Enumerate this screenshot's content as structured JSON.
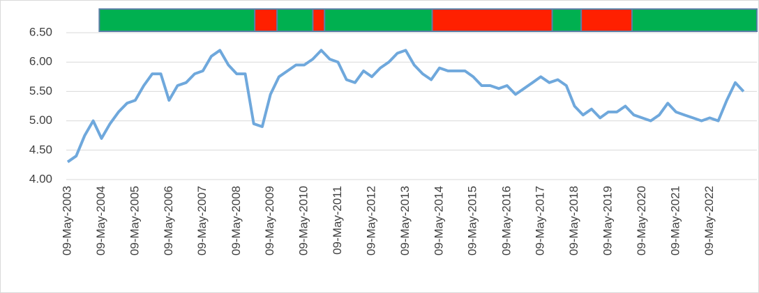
{
  "chart_data": {
    "type": "line",
    "x": [
      "2003-05-09",
      "2003-08-09",
      "2003-11-09",
      "2004-02-09",
      "2004-05-09",
      "2004-08-09",
      "2004-11-09",
      "2005-02-09",
      "2005-05-09",
      "2005-08-09",
      "2005-11-09",
      "2006-02-09",
      "2006-05-09",
      "2006-08-09",
      "2006-11-09",
      "2007-02-09",
      "2007-05-09",
      "2007-08-09",
      "2007-11-09",
      "2008-02-09",
      "2008-05-09",
      "2008-08-09",
      "2008-11-09",
      "2009-02-09",
      "2009-05-09",
      "2009-08-09",
      "2009-11-09",
      "2010-02-09",
      "2010-05-09",
      "2010-08-09",
      "2010-11-09",
      "2011-02-09",
      "2011-05-09",
      "2011-08-09",
      "2011-11-09",
      "2012-02-09",
      "2012-05-09",
      "2012-08-09",
      "2012-11-09",
      "2013-02-09",
      "2013-05-09",
      "2013-08-09",
      "2013-11-09",
      "2014-02-09",
      "2014-05-09",
      "2014-08-09",
      "2014-11-09",
      "2015-02-09",
      "2015-05-09",
      "2015-08-09",
      "2015-11-09",
      "2016-02-09",
      "2016-05-09",
      "2016-08-09",
      "2016-11-09",
      "2017-02-09",
      "2017-05-09",
      "2017-08-09",
      "2017-11-09",
      "2018-02-09",
      "2018-05-09",
      "2018-08-09",
      "2018-11-09",
      "2019-02-09",
      "2019-05-09",
      "2019-08-09",
      "2019-11-09",
      "2020-02-09",
      "2020-05-09",
      "2020-08-09",
      "2020-11-09",
      "2021-02-09",
      "2021-05-09",
      "2021-08-09",
      "2021-11-09",
      "2022-02-09",
      "2022-05-09",
      "2022-08-09",
      "2022-11-09",
      "2023-02-09",
      "2023-05-09"
    ],
    "series": [
      {
        "color": "#6fa8dc",
        "values": [
          4.3,
          4.4,
          4.75,
          5.0,
          4.7,
          4.95,
          5.15,
          5.3,
          5.35,
          5.6,
          5.8,
          5.8,
          5.35,
          5.6,
          5.65,
          5.8,
          5.85,
          6.1,
          6.2,
          5.95,
          5.8,
          5.8,
          4.95,
          4.9,
          5.45,
          5.75,
          5.85,
          5.95,
          5.95,
          6.05,
          6.2,
          6.05,
          6.0,
          5.7,
          5.65,
          5.85,
          5.75,
          5.9,
          6.0,
          6.15,
          6.2,
          5.95,
          5.8,
          5.7,
          5.9,
          5.85,
          5.85,
          5.85,
          5.75,
          5.6,
          5.6,
          5.55,
          5.6,
          5.45,
          5.55,
          5.65,
          5.75,
          5.65,
          5.7,
          5.6,
          5.25,
          5.1,
          5.2,
          5.05,
          5.15,
          5.15,
          5.25,
          5.1,
          5.05,
          5.0,
          5.1,
          5.3,
          5.15,
          5.1,
          5.05,
          5.0,
          5.05,
          5.0,
          5.35,
          5.65,
          5.5
        ]
      }
    ],
    "bands": [
      {
        "start": "2004-04-15",
        "end": "2008-11-20",
        "color": "#00b050"
      },
      {
        "start": "2008-11-20",
        "end": "2009-07-20",
        "color": "#ff2000"
      },
      {
        "start": "2009-07-20",
        "end": "2010-08-10",
        "color": "#00b050"
      },
      {
        "start": "2010-08-10",
        "end": "2010-12-15",
        "color": "#ff2000"
      },
      {
        "start": "2010-12-15",
        "end": "2014-02-20",
        "color": "#00b050"
      },
      {
        "start": "2014-02-20",
        "end": "2017-09-10",
        "color": "#ff2000"
      },
      {
        "start": "2017-09-10",
        "end": "2018-07-20",
        "color": "#00b050"
      },
      {
        "start": "2018-07-20",
        "end": "2020-01-20",
        "color": "#ff2000"
      },
      {
        "start": "2020-01-20",
        "end": "2023-10-01",
        "color": "#00b050"
      }
    ],
    "xlim": [
      "2003-05-09",
      "2023-10-01"
    ],
    "xticks": [
      {
        "value": "2003-05-09",
        "label": "09-May-2003"
      },
      {
        "value": "2004-05-09",
        "label": "09-May-2004"
      },
      {
        "value": "2005-05-09",
        "label": "09-May-2005"
      },
      {
        "value": "2006-05-09",
        "label": "09-May-2006"
      },
      {
        "value": "2007-05-09",
        "label": "09-May-2007"
      },
      {
        "value": "2008-05-09",
        "label": "09-May-2008"
      },
      {
        "value": "2009-05-09",
        "label": "09-May-2009"
      },
      {
        "value": "2010-05-09",
        "label": "09-May-2010"
      },
      {
        "value": "2011-05-09",
        "label": "09-May-2011"
      },
      {
        "value": "2012-05-09",
        "label": "09-May-2012"
      },
      {
        "value": "2013-05-09",
        "label": "09-May-2013"
      },
      {
        "value": "2014-05-09",
        "label": "09-May-2014"
      },
      {
        "value": "2015-05-09",
        "label": "09-May-2015"
      },
      {
        "value": "2016-05-09",
        "label": "09-May-2016"
      },
      {
        "value": "2017-05-09",
        "label": "09-May-2017"
      },
      {
        "value": "2018-05-09",
        "label": "09-May-2018"
      },
      {
        "value": "2019-05-09",
        "label": "09-May-2019"
      },
      {
        "value": "2020-05-09",
        "label": "09-May-2020"
      },
      {
        "value": "2021-05-09",
        "label": "09-May-2021"
      },
      {
        "value": "2022-05-09",
        "label": "09-May-2022"
      }
    ],
    "ylim": [
      4,
      6.5
    ],
    "yticks": [
      {
        "value": 4,
        "label": "4.00"
      },
      {
        "value": 4.5,
        "label": "4.50"
      },
      {
        "value": 5,
        "label": "5.00"
      },
      {
        "value": 5.5,
        "label": "5.50"
      },
      {
        "value": 6,
        "label": "6.00"
      },
      {
        "value": 6.5,
        "label": "6.50"
      }
    ],
    "grid": true
  }
}
